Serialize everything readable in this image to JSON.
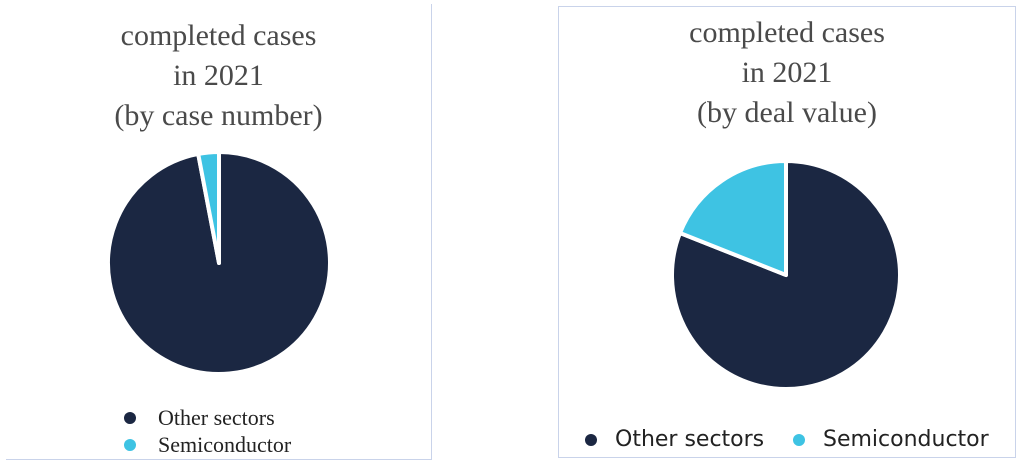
{
  "chart_data": [
    {
      "type": "pie",
      "title_lines": [
        "completed cases",
        "in 2021",
        "(by case number)"
      ],
      "categories": [
        "Other sectors",
        "Semiconductor"
      ],
      "values": [
        97,
        3
      ],
      "unit": "%",
      "colors": [
        "#1b2742",
        "#3ec3e3"
      ],
      "legend": {
        "position": "bottom",
        "layout": "vertical",
        "entries": [
          "Other sectors",
          "Semiconductor"
        ]
      }
    },
    {
      "type": "pie",
      "title_lines": [
        "completed cases",
        "in 2021",
        "(by deal value)"
      ],
      "categories": [
        "Other sectors",
        "Semiconductor"
      ],
      "values": [
        81,
        19
      ],
      "unit": "%",
      "colors": [
        "#1b2742",
        "#3ec3e3"
      ],
      "legend": {
        "position": "bottom",
        "layout": "horizontal",
        "entries": [
          "Other sectors",
          "Semiconductor"
        ]
      }
    }
  ]
}
